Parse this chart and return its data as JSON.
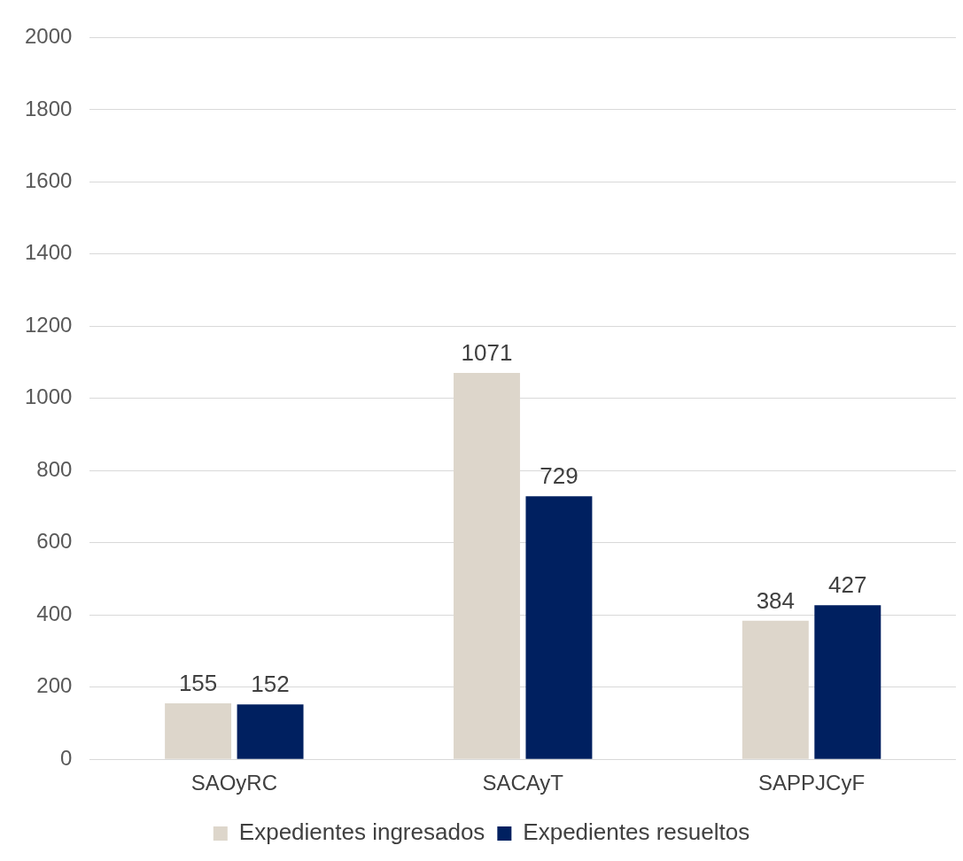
{
  "chart_data": {
    "type": "bar",
    "categories": [
      "SAOyRC",
      "SACAyT",
      "SAPPJCyF"
    ],
    "series": [
      {
        "name": "Expedientes ingresados",
        "color": "#ddd6cb",
        "values": [
          155,
          1071,
          384
        ]
      },
      {
        "name": "Expedientes resueltos",
        "color": "#002060",
        "values": [
          152,
          729,
          427
        ]
      }
    ],
    "ylim": [
      0,
      2000
    ],
    "yticks": [
      0,
      200,
      400,
      600,
      800,
      1000,
      1200,
      1400,
      1600,
      1800,
      2000
    ],
    "grid": "y",
    "legend": "bottom",
    "data_labels": true
  }
}
